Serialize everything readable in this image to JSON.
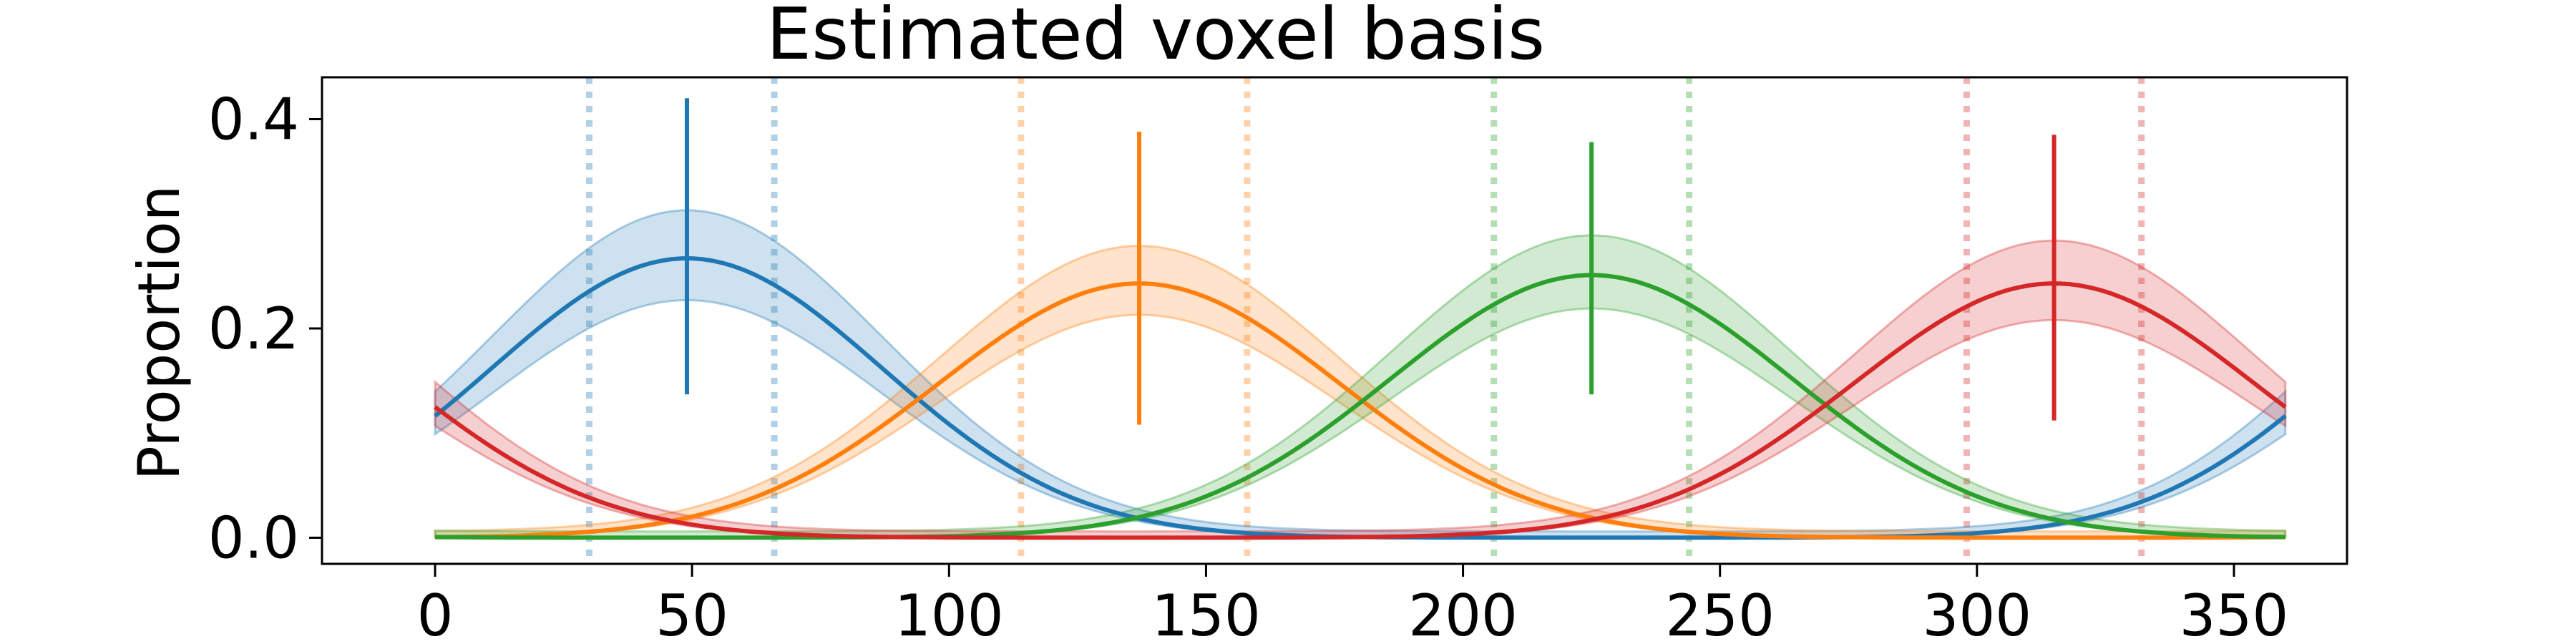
{
  "chart_data": {
    "type": "line",
    "title": "Estimated voxel basis",
    "xlabel": "",
    "ylabel": "Proportion",
    "xlim": [
      -22,
      372
    ],
    "ylim": [
      -0.025,
      0.44
    ],
    "xticks": [
      0,
      50,
      100,
      150,
      200,
      250,
      300,
      350
    ],
    "yticks": [
      0.0,
      0.2,
      0.4
    ],
    "ytick_labels": [
      "0.0",
      "0.2",
      "0.4"
    ],
    "grid": false,
    "legend": "none",
    "series": [
      {
        "color": "#1f77b4",
        "center": 49,
        "peak": 0.267,
        "width_sd": 38,
        "band": 0.04,
        "error_bar": [
          0.137,
          0.42
        ],
        "bounds": [
          30,
          66
        ]
      },
      {
        "color": "#ff7f0e",
        "center": 137,
        "peak": 0.243,
        "width_sd": 39,
        "band": 0.03,
        "error_bar": [
          0.108,
          0.388
        ],
        "bounds": [
          114,
          158
        ]
      },
      {
        "color": "#2ca02c",
        "center": 225,
        "peak": 0.251,
        "width_sd": 39,
        "band": 0.032,
        "error_bar": [
          0.137,
          0.378
        ],
        "bounds": [
          206,
          244
        ]
      },
      {
        "color": "#d62728",
        "center": 315,
        "peak": 0.243,
        "width_sd": 39,
        "band": 0.035,
        "error_bar": [
          0.112,
          0.385
        ],
        "bounds": [
          298,
          332
        ]
      }
    ]
  }
}
